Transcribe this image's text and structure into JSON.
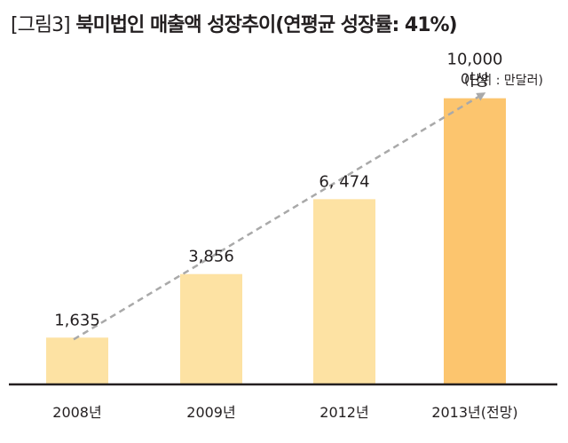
{
  "title": {
    "figure_label": "[그림3]",
    "text": "북미법인 매출액 성장추이(연평균 성장률: 41%)"
  },
  "unit_note": "(단위 : 만달러)",
  "colors": {
    "bar": "#fde2a3",
    "bar_highlight": "#fcc56e",
    "trend_arrow": "#a9a9a9",
    "axis": "#231f20"
  },
  "chart_data": {
    "type": "bar",
    "title": "북미법인 매출액 성장추이(연평균 성장률: 41%)",
    "xlabel": "",
    "ylabel": "",
    "unit": "만달러",
    "categories": [
      "2008년",
      "2009년",
      "2012년",
      "2013년(전망)"
    ],
    "values": [
      1635,
      3856,
      6474,
      10000
    ],
    "value_labels": [
      [
        "1,635"
      ],
      [
        "3,856"
      ],
      [
        "6, 474"
      ],
      [
        "10,000",
        "이상"
      ]
    ],
    "highlight_index": 3,
    "ylim": [
      0,
      11200
    ],
    "grid": false,
    "legend": "none",
    "trend_arrow": true
  }
}
